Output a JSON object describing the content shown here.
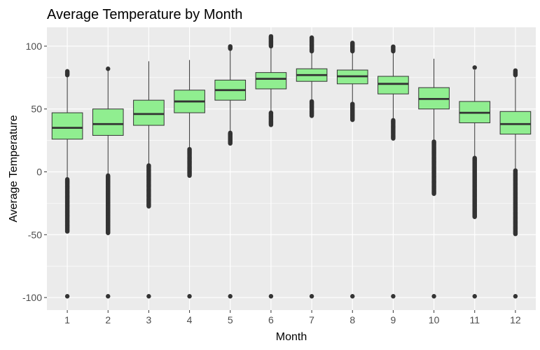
{
  "chart_data": {
    "type": "boxplot",
    "title": "Average Temperature by Month",
    "xlabel": "Month",
    "ylabel": "Average Temperature",
    "ylim": [
      -110,
      115
    ],
    "yticks": [
      100,
      50,
      0,
      -50,
      -100
    ],
    "grid": true,
    "colors": {
      "panel_bg": "#ebebeb",
      "grid": "#ffffff",
      "box_fill": "#90ee90",
      "stroke": "#333333",
      "outlier": "#333333"
    },
    "categories": [
      "1",
      "2",
      "3",
      "4",
      "5",
      "6",
      "7",
      "8",
      "9",
      "10",
      "11",
      "12"
    ],
    "boxes": [
      {
        "month": "1",
        "q1": 26,
        "median": 35,
        "q3": 47,
        "whisker_low": -6,
        "whisker_high": 77,
        "outliers_low": [
          -6,
          -48
        ],
        "outliers_high": [
          77,
          80
        ],
        "min_outlier": -99
      },
      {
        "month": "2",
        "q1": 29,
        "median": 38,
        "q3": 50,
        "whisker_low": -3,
        "whisker_high": 81,
        "outliers_low": [
          -3,
          -49
        ],
        "outliers_high": [
          82
        ],
        "min_outlier": -99
      },
      {
        "month": "3",
        "q1": 37,
        "median": 46,
        "q3": 57,
        "whisker_low": 5,
        "whisker_high": 88,
        "outliers_low": [
          5,
          -28
        ],
        "outliers_high": [],
        "min_outlier": -99
      },
      {
        "month": "4",
        "q1": 47,
        "median": 56,
        "q3": 65,
        "whisker_low": 19,
        "whisker_high": 89,
        "outliers_low": [
          18,
          -3
        ],
        "outliers_high": [],
        "min_outlier": -99
      },
      {
        "month": "5",
        "q1": 57,
        "median": 65,
        "q3": 73,
        "whisker_low": 32,
        "whisker_high": 98,
        "outliers_low": [
          31,
          22
        ],
        "outliers_high": [
          98,
          100
        ],
        "min_outlier": -99
      },
      {
        "month": "6",
        "q1": 66,
        "median": 74,
        "q3": 79,
        "whisker_low": 47,
        "whisker_high": 99,
        "outliers_low": [
          47,
          37
        ],
        "outliers_high": [
          100,
          108
        ],
        "min_outlier": -99
      },
      {
        "month": "7",
        "q1": 72,
        "median": 77,
        "q3": 82,
        "whisker_low": 57,
        "whisker_high": 96,
        "outliers_low": [
          56,
          44
        ],
        "outliers_high": [
          96,
          107
        ],
        "min_outlier": -99
      },
      {
        "month": "8",
        "q1": 70,
        "median": 76,
        "q3": 81,
        "whisker_low": 55,
        "whisker_high": 96,
        "outliers_low": [
          54,
          41
        ],
        "outliers_high": [
          96,
          103
        ],
        "min_outlier": -99
      },
      {
        "month": "9",
        "q1": 62,
        "median": 70,
        "q3": 76,
        "whisker_low": 42,
        "whisker_high": 96,
        "outliers_low": [
          41,
          26
        ],
        "outliers_high": [
          96,
          100
        ],
        "min_outlier": -99
      },
      {
        "month": "10",
        "q1": 50,
        "median": 58,
        "q3": 67,
        "whisker_low": 25,
        "whisker_high": 90,
        "outliers_low": [
          24,
          -18
        ],
        "outliers_high": [],
        "min_outlier": -99
      },
      {
        "month": "11",
        "q1": 39,
        "median": 47,
        "q3": 56,
        "whisker_low": 12,
        "whisker_high": 81,
        "outliers_low": [
          11,
          -36
        ],
        "outliers_high": [
          83
        ],
        "min_outlier": -99
      },
      {
        "month": "12",
        "q1": 30,
        "median": 38,
        "q3": 48,
        "whisker_low": 2,
        "whisker_high": 77,
        "outliers_low": [
          1,
          -50
        ],
        "outliers_high": [
          77,
          81
        ],
        "min_outlier": -99
      }
    ]
  }
}
